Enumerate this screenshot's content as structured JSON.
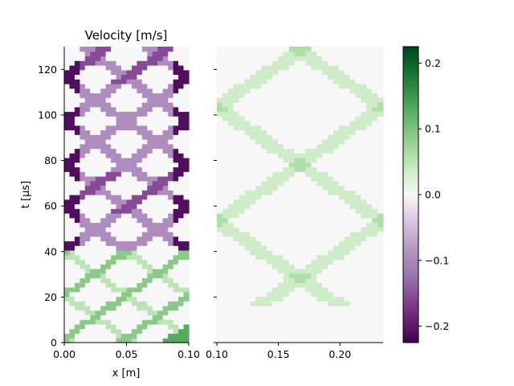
{
  "chart_data": {
    "type": "heatmap",
    "title": "Velocity [m/s]",
    "xlabel": "x [m]",
    "ylabel": "t [µs]",
    "panels": [
      {
        "name": "left",
        "xlim": [
          0.0,
          0.1
        ],
        "xticks": [
          "0.00",
          "0.05",
          "0.10"
        ]
      },
      {
        "name": "right",
        "xlim": [
          0.1,
          0.235
        ],
        "xticks": [
          "0.10",
          "0.15",
          "0.20"
        ]
      }
    ],
    "ylim": [
      0,
      130
    ],
    "yticks": [
      "0",
      "20",
      "40",
      "60",
      "80",
      "100",
      "120"
    ],
    "colorbar": {
      "vmin": -0.225,
      "vmax": 0.225,
      "ticks": [
        "−0.2",
        "−0.1",
        "0.0",
        "0.1",
        "0.2"
      ],
      "tick_values": [
        -0.2,
        -0.1,
        0.0,
        0.1,
        0.2
      ],
      "colormap": "PRGn"
    },
    "wave": {
      "description_values": {
        "left_panel": {
          "initial_band_value": 0.13,
          "band_values_t_lt_40": [
            0.09,
            0.05
          ],
          "band_values_t_ge_40": [
            -0.095,
            -0.155,
            -0.21
          ]
        },
        "right_panel": {
          "band_values": [
            0.035,
            0.06
          ]
        }
      }
    }
  },
  "colors": {
    "positive_strong": "#1b7837",
    "positive_mid": "#5aae61",
    "positive_light": "#a6dba0",
    "neutral": "#f7f7f7",
    "negative_light": "#c2a5cf",
    "negative_mid": "#9970ab",
    "negative_strong": "#40004b"
  }
}
